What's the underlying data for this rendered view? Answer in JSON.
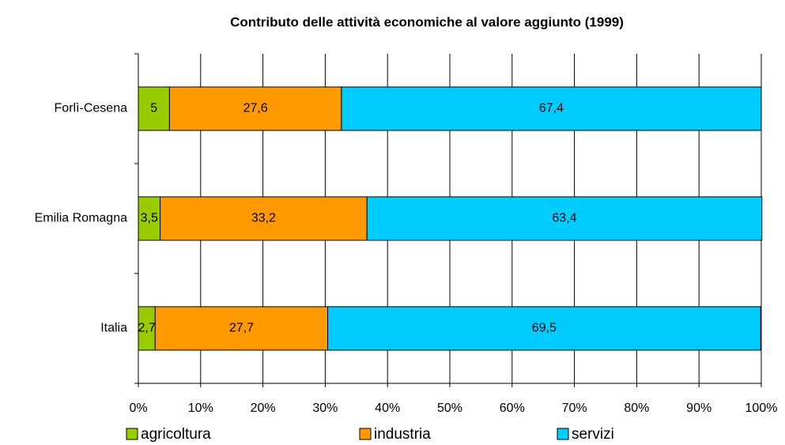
{
  "chart_data": {
    "type": "stacked_barh",
    "title": "Contributo delle attività economiche al valore aggiunto (1999)",
    "categories": [
      "Forlì-Cesena",
      "Emilia Romagna",
      "Italia"
    ],
    "series": [
      {
        "name": "agricoltura",
        "color": "#99cc00",
        "values": [
          5,
          3.5,
          2.7
        ],
        "value_labels": [
          "5",
          "3,5",
          "2,7"
        ]
      },
      {
        "name": "industria",
        "color": "#ff9900",
        "values": [
          27.6,
          33.2,
          27.7
        ],
        "value_labels": [
          "27,6",
          "33,2",
          "27,7"
        ]
      },
      {
        "name": "servizi",
        "color": "#00ccff",
        "values": [
          67.4,
          63.4,
          69.5
        ],
        "value_labels": [
          "67,4",
          "63,4",
          "69,5"
        ]
      }
    ],
    "xlim": [
      0,
      100
    ],
    "xticks": [
      {
        "value": 0,
        "label": "0%"
      },
      {
        "value": 10,
        "label": "10%"
      },
      {
        "value": 20,
        "label": "20%"
      },
      {
        "value": 30,
        "label": "30%"
      },
      {
        "value": 40,
        "label": "40%"
      },
      {
        "value": 50,
        "label": "50%"
      },
      {
        "value": 60,
        "label": "60%"
      },
      {
        "value": 70,
        "label": "70%"
      },
      {
        "value": 80,
        "label": "80%"
      },
      {
        "value": 90,
        "label": "90%"
      },
      {
        "value": 100,
        "label": "100%"
      }
    ],
    "grid": true,
    "legend": "bottom"
  }
}
